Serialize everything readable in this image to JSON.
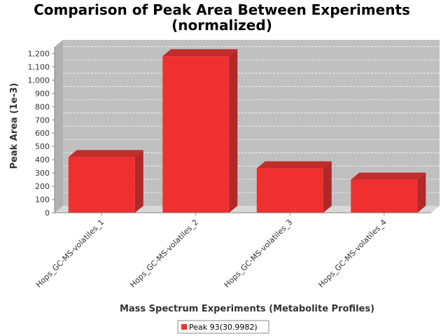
{
  "chart_data": {
    "type": "bar",
    "title": "Comparison of Peak Area Between Experiments (normalized)",
    "title_lines": [
      "Comparison of Peak Area Between Experiments",
      "(normalized)"
    ],
    "xlabel": "Mass Spectrum Experiments (Metabolite Profiles)",
    "ylabel": "Peak Area (1e-3)",
    "categories": [
      "Hops_GC-MS-volatiles_1",
      "Hops_GC-MS-volatiles_2",
      "Hops_GC-MS-volatiles_3",
      "Hops_GC-MS-volatiles_4"
    ],
    "series": [
      {
        "name": "Peak 93(30.9982)",
        "values": [
          420,
          1180,
          335,
          250
        ],
        "color": "#f03030"
      }
    ],
    "ylim": [
      0,
      1250
    ],
    "yticks": [
      0,
      100,
      200,
      300,
      400,
      500,
      600,
      700,
      800,
      900,
      1000,
      1100,
      1200
    ],
    "ytick_labels": [
      "0",
      "100",
      "200",
      "300",
      "400",
      "500",
      "600",
      "700",
      "800",
      "900",
      "1,000",
      "1,100",
      "1,200"
    ],
    "grid": true,
    "legend_position": "bottom-center",
    "plot_background": "#c0c0c0"
  }
}
